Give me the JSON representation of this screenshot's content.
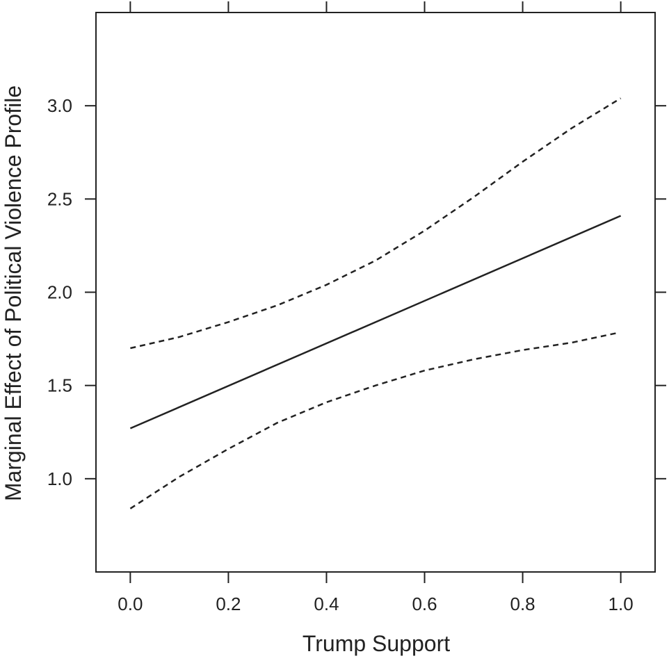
{
  "chart_data": {
    "type": "line",
    "xlabel": "Trump Support",
    "ylabel": "Marginal Effect of Political Violence Profile",
    "xlim": [
      -0.07,
      1.07
    ],
    "ylim": [
      0.5,
      3.5
    ],
    "x_ticks": [
      0.0,
      0.2,
      0.4,
      0.6,
      0.8,
      1.0
    ],
    "x_tick_labels": [
      "0.0",
      "0.2",
      "0.4",
      "0.6",
      "0.8",
      "1.0"
    ],
    "y_ticks": [
      1.0,
      1.5,
      2.0,
      2.5,
      3.0
    ],
    "y_tick_labels": [
      "1.0",
      "1.5",
      "2.0",
      "2.5",
      "3.0"
    ],
    "grid": false,
    "legend": "none",
    "series": [
      {
        "role": "estimate",
        "style": "solid",
        "color": "#222222",
        "x": [
          0.0,
          1.0
        ],
        "y": [
          1.27,
          2.41
        ]
      },
      {
        "role": "upper-bound",
        "style": "dashed",
        "color": "#222222",
        "x": [
          0.0,
          0.1,
          0.2,
          0.3,
          0.4,
          0.5,
          0.6,
          0.7,
          0.8,
          0.9,
          1.0
        ],
        "y": [
          1.7,
          1.76,
          1.84,
          1.93,
          2.04,
          2.17,
          2.33,
          2.51,
          2.7,
          2.88,
          3.04
        ]
      },
      {
        "role": "lower-bound",
        "style": "dashed",
        "color": "#222222",
        "x": [
          0.0,
          0.1,
          0.2,
          0.3,
          0.4,
          0.5,
          0.6,
          0.7,
          0.8,
          0.9,
          0.99
        ],
        "y": [
          0.84,
          1.01,
          1.16,
          1.3,
          1.41,
          1.5,
          1.58,
          1.64,
          1.69,
          1.73,
          1.78
        ]
      }
    ]
  }
}
